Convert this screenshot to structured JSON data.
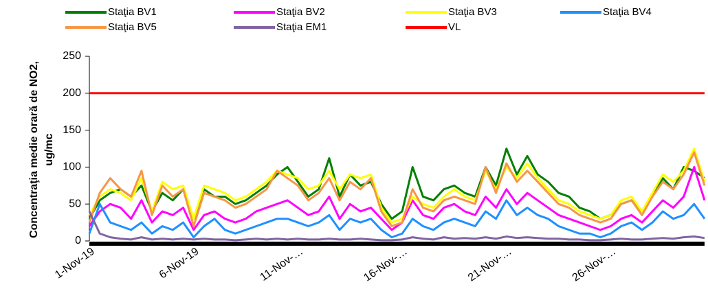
{
  "chart_data": {
    "type": "line",
    "ylabel": [
      "Concentraţia medie orară de NO2,",
      "ug/mc"
    ],
    "categories": [
      "1-Nov-19",
      null,
      null,
      null,
      null,
      null,
      null,
      null,
      null,
      null,
      "6-Nov-19",
      null,
      null,
      null,
      null,
      null,
      null,
      null,
      null,
      null,
      "11-Nov-…",
      null,
      null,
      null,
      null,
      null,
      null,
      null,
      null,
      null,
      "16-Nov-…",
      null,
      null,
      null,
      null,
      null,
      null,
      null,
      null,
      null,
      "21-Nov-…",
      null,
      null,
      null,
      null,
      null,
      null,
      null,
      null,
      null,
      "26-Nov-…",
      null,
      null,
      null,
      null,
      null,
      null,
      null,
      null,
      null
    ],
    "ylim": [
      0,
      250
    ],
    "yticks": [
      0,
      50,
      100,
      150,
      200,
      250
    ],
    "series": [
      {
        "name": "Staţia BV1",
        "color": "#008000",
        "values": [
          30,
          55,
          65,
          70,
          60,
          75,
          40,
          65,
          55,
          70,
          30,
          70,
          60,
          60,
          50,
          55,
          65,
          75,
          90,
          100,
          80,
          60,
          70,
          112,
          60,
          90,
          75,
          80,
          50,
          30,
          40,
          100,
          60,
          55,
          70,
          75,
          65,
          60,
          100,
          75,
          125,
          90,
          115,
          90,
          80,
          65,
          60,
          45,
          40,
          30,
          35,
          50,
          55,
          40,
          60,
          85,
          70,
          100,
          95,
          85
        ]
      },
      {
        "name": "Staţia BV2",
        "color": "#ff00ff",
        "values": [
          20,
          40,
          50,
          45,
          30,
          55,
          25,
          40,
          35,
          45,
          15,
          35,
          40,
          30,
          25,
          30,
          40,
          45,
          50,
          55,
          45,
          35,
          40,
          60,
          30,
          50,
          40,
          45,
          30,
          15,
          25,
          55,
          35,
          30,
          45,
          50,
          40,
          35,
          60,
          45,
          70,
          50,
          65,
          55,
          45,
          35,
          30,
          25,
          20,
          15,
          20,
          30,
          35,
          25,
          40,
          55,
          45,
          60,
          100,
          55
        ]
      },
      {
        "name": "Staţia BV3",
        "color": "#ffff00",
        "values": [
          35,
          60,
          70,
          65,
          55,
          85,
          40,
          80,
          70,
          75,
          30,
          75,
          70,
          65,
          55,
          60,
          70,
          80,
          95,
          90,
          85,
          70,
          75,
          95,
          70,
          90,
          85,
          90,
          45,
          25,
          30,
          60,
          50,
          45,
          60,
          70,
          60,
          55,
          95,
          70,
          100,
          85,
          105,
          85,
          70,
          55,
          50,
          40,
          35,
          30,
          35,
          55,
          60,
          40,
          65,
          90,
          80,
          95,
          125,
          80
        ]
      },
      {
        "name": "Staţia BV4",
        "color": "#1e90ff",
        "values": [
          10,
          50,
          25,
          20,
          15,
          25,
          10,
          20,
          15,
          25,
          5,
          20,
          30,
          15,
          10,
          15,
          20,
          25,
          30,
          30,
          25,
          20,
          25,
          35,
          15,
          30,
          25,
          30,
          15,
          5,
          10,
          30,
          20,
          15,
          25,
          30,
          25,
          20,
          40,
          30,
          55,
          35,
          45,
          35,
          30,
          20,
          15,
          10,
          10,
          5,
          10,
          20,
          25,
          15,
          25,
          40,
          30,
          35,
          50,
          30
        ]
      },
      {
        "name": "Staţia BV5",
        "color": "#f79646",
        "values": [
          25,
          65,
          85,
          70,
          60,
          95,
          35,
          75,
          60,
          70,
          20,
          65,
          60,
          55,
          45,
          50,
          60,
          70,
          95,
          85,
          75,
          55,
          65,
          85,
          55,
          80,
          70,
          85,
          40,
          20,
          25,
          70,
          45,
          40,
          55,
          60,
          55,
          50,
          100,
          65,
          105,
          80,
          95,
          80,
          65,
          50,
          45,
          35,
          30,
          25,
          30,
          50,
          55,
          35,
          60,
          80,
          70,
          90,
          120,
          75
        ]
      },
      {
        "name": "Staţia EM1",
        "color": "#8064a2",
        "values": [
          40,
          10,
          5,
          3,
          2,
          5,
          2,
          3,
          2,
          3,
          2,
          3,
          2,
          2,
          1,
          2,
          3,
          2,
          3,
          2,
          3,
          2,
          2,
          3,
          2,
          2,
          3,
          2,
          1,
          1,
          2,
          5,
          3,
          2,
          5,
          3,
          4,
          3,
          5,
          3,
          6,
          4,
          5,
          4,
          3,
          3,
          2,
          2,
          1,
          1,
          2,
          3,
          2,
          2,
          3,
          4,
          3,
          5,
          6,
          4
        ]
      },
      {
        "name": "VL",
        "color": "#ff0000",
        "values": [
          200,
          200,
          200,
          200,
          200,
          200,
          200,
          200,
          200,
          200,
          200,
          200,
          200,
          200,
          200,
          200,
          200,
          200,
          200,
          200,
          200,
          200,
          200,
          200,
          200,
          200,
          200,
          200,
          200,
          200,
          200,
          200,
          200,
          200,
          200,
          200,
          200,
          200,
          200,
          200,
          200,
          200,
          200,
          200,
          200,
          200,
          200,
          200,
          200,
          200,
          200,
          200,
          200,
          200,
          200,
          200,
          200,
          200,
          200,
          200
        ]
      }
    ]
  }
}
